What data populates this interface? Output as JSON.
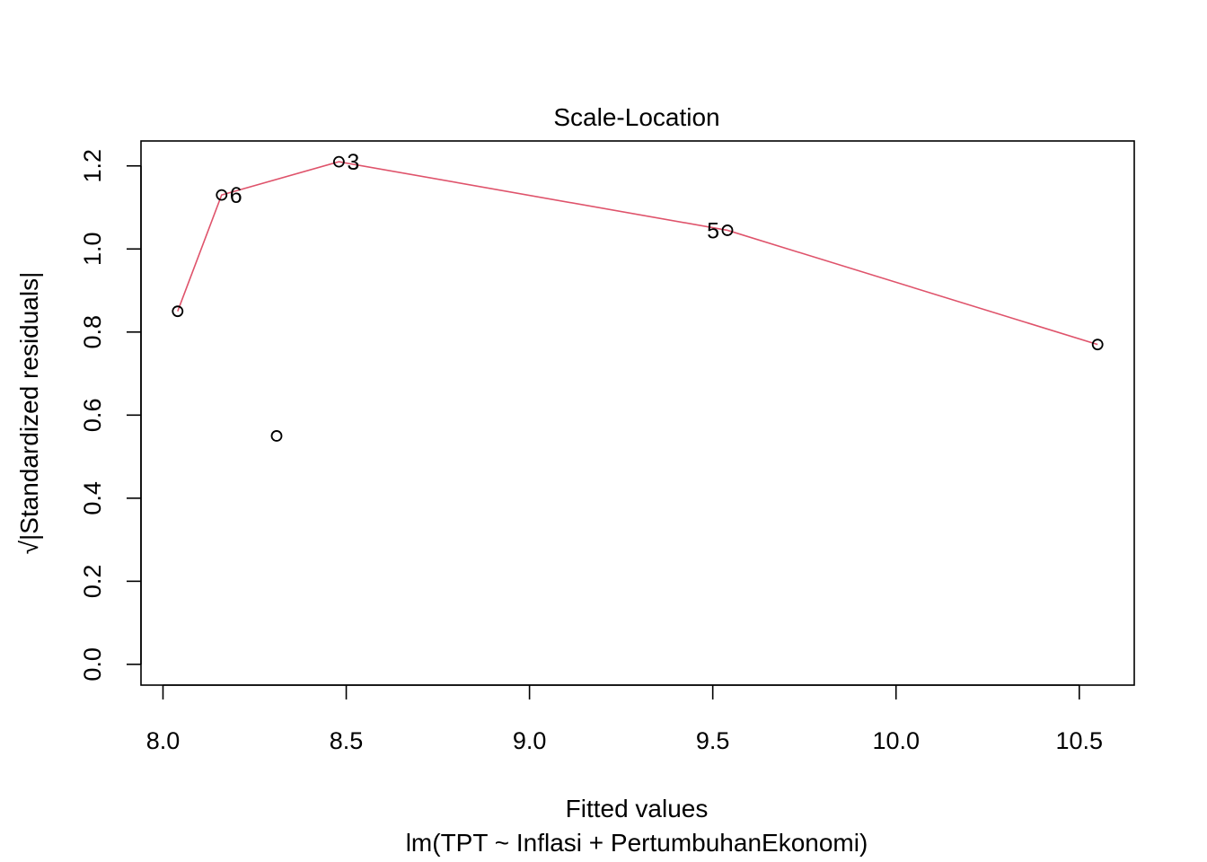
{
  "chart_data": {
    "type": "scatter",
    "title": "Scale-Location",
    "xlabel": "Fitted values",
    "subtitle": "lm(TPT ~ Inflasi + PertumbuhanEkonomi)",
    "ylabel": "√|Standardized residuals|",
    "xlim": [
      7.94,
      10.65
    ],
    "ylim": [
      -0.05,
      1.26
    ],
    "x_ticks": [
      8.0,
      8.5,
      9.0,
      9.5,
      10.0,
      10.5
    ],
    "x_tick_labels": [
      "8.0",
      "8.5",
      "9.0",
      "9.5",
      "10.0",
      "10.5"
    ],
    "y_ticks": [
      0.0,
      0.2,
      0.4,
      0.6,
      0.8,
      1.0,
      1.2
    ],
    "y_tick_labels": [
      "0.0",
      "0.2",
      "0.4",
      "0.6",
      "0.8",
      "1.0",
      "1.2"
    ],
    "grid": false,
    "points": [
      {
        "x": 8.04,
        "y": 0.85,
        "label": ""
      },
      {
        "x": 8.16,
        "y": 1.13,
        "label": "6",
        "label_side": "right"
      },
      {
        "x": 8.31,
        "y": 0.55,
        "label": ""
      },
      {
        "x": 8.48,
        "y": 1.21,
        "label": "3",
        "label_side": "right"
      },
      {
        "x": 9.54,
        "y": 1.045,
        "label": "5",
        "label_side": "left"
      },
      {
        "x": 10.55,
        "y": 0.77,
        "label": ""
      }
    ],
    "smooth_line": {
      "color": "#DF536B",
      "x": [
        8.04,
        8.16,
        8.48,
        9.54,
        10.55
      ],
      "y": [
        0.85,
        1.13,
        1.21,
        1.045,
        0.77
      ]
    },
    "point_color": "#000000"
  }
}
